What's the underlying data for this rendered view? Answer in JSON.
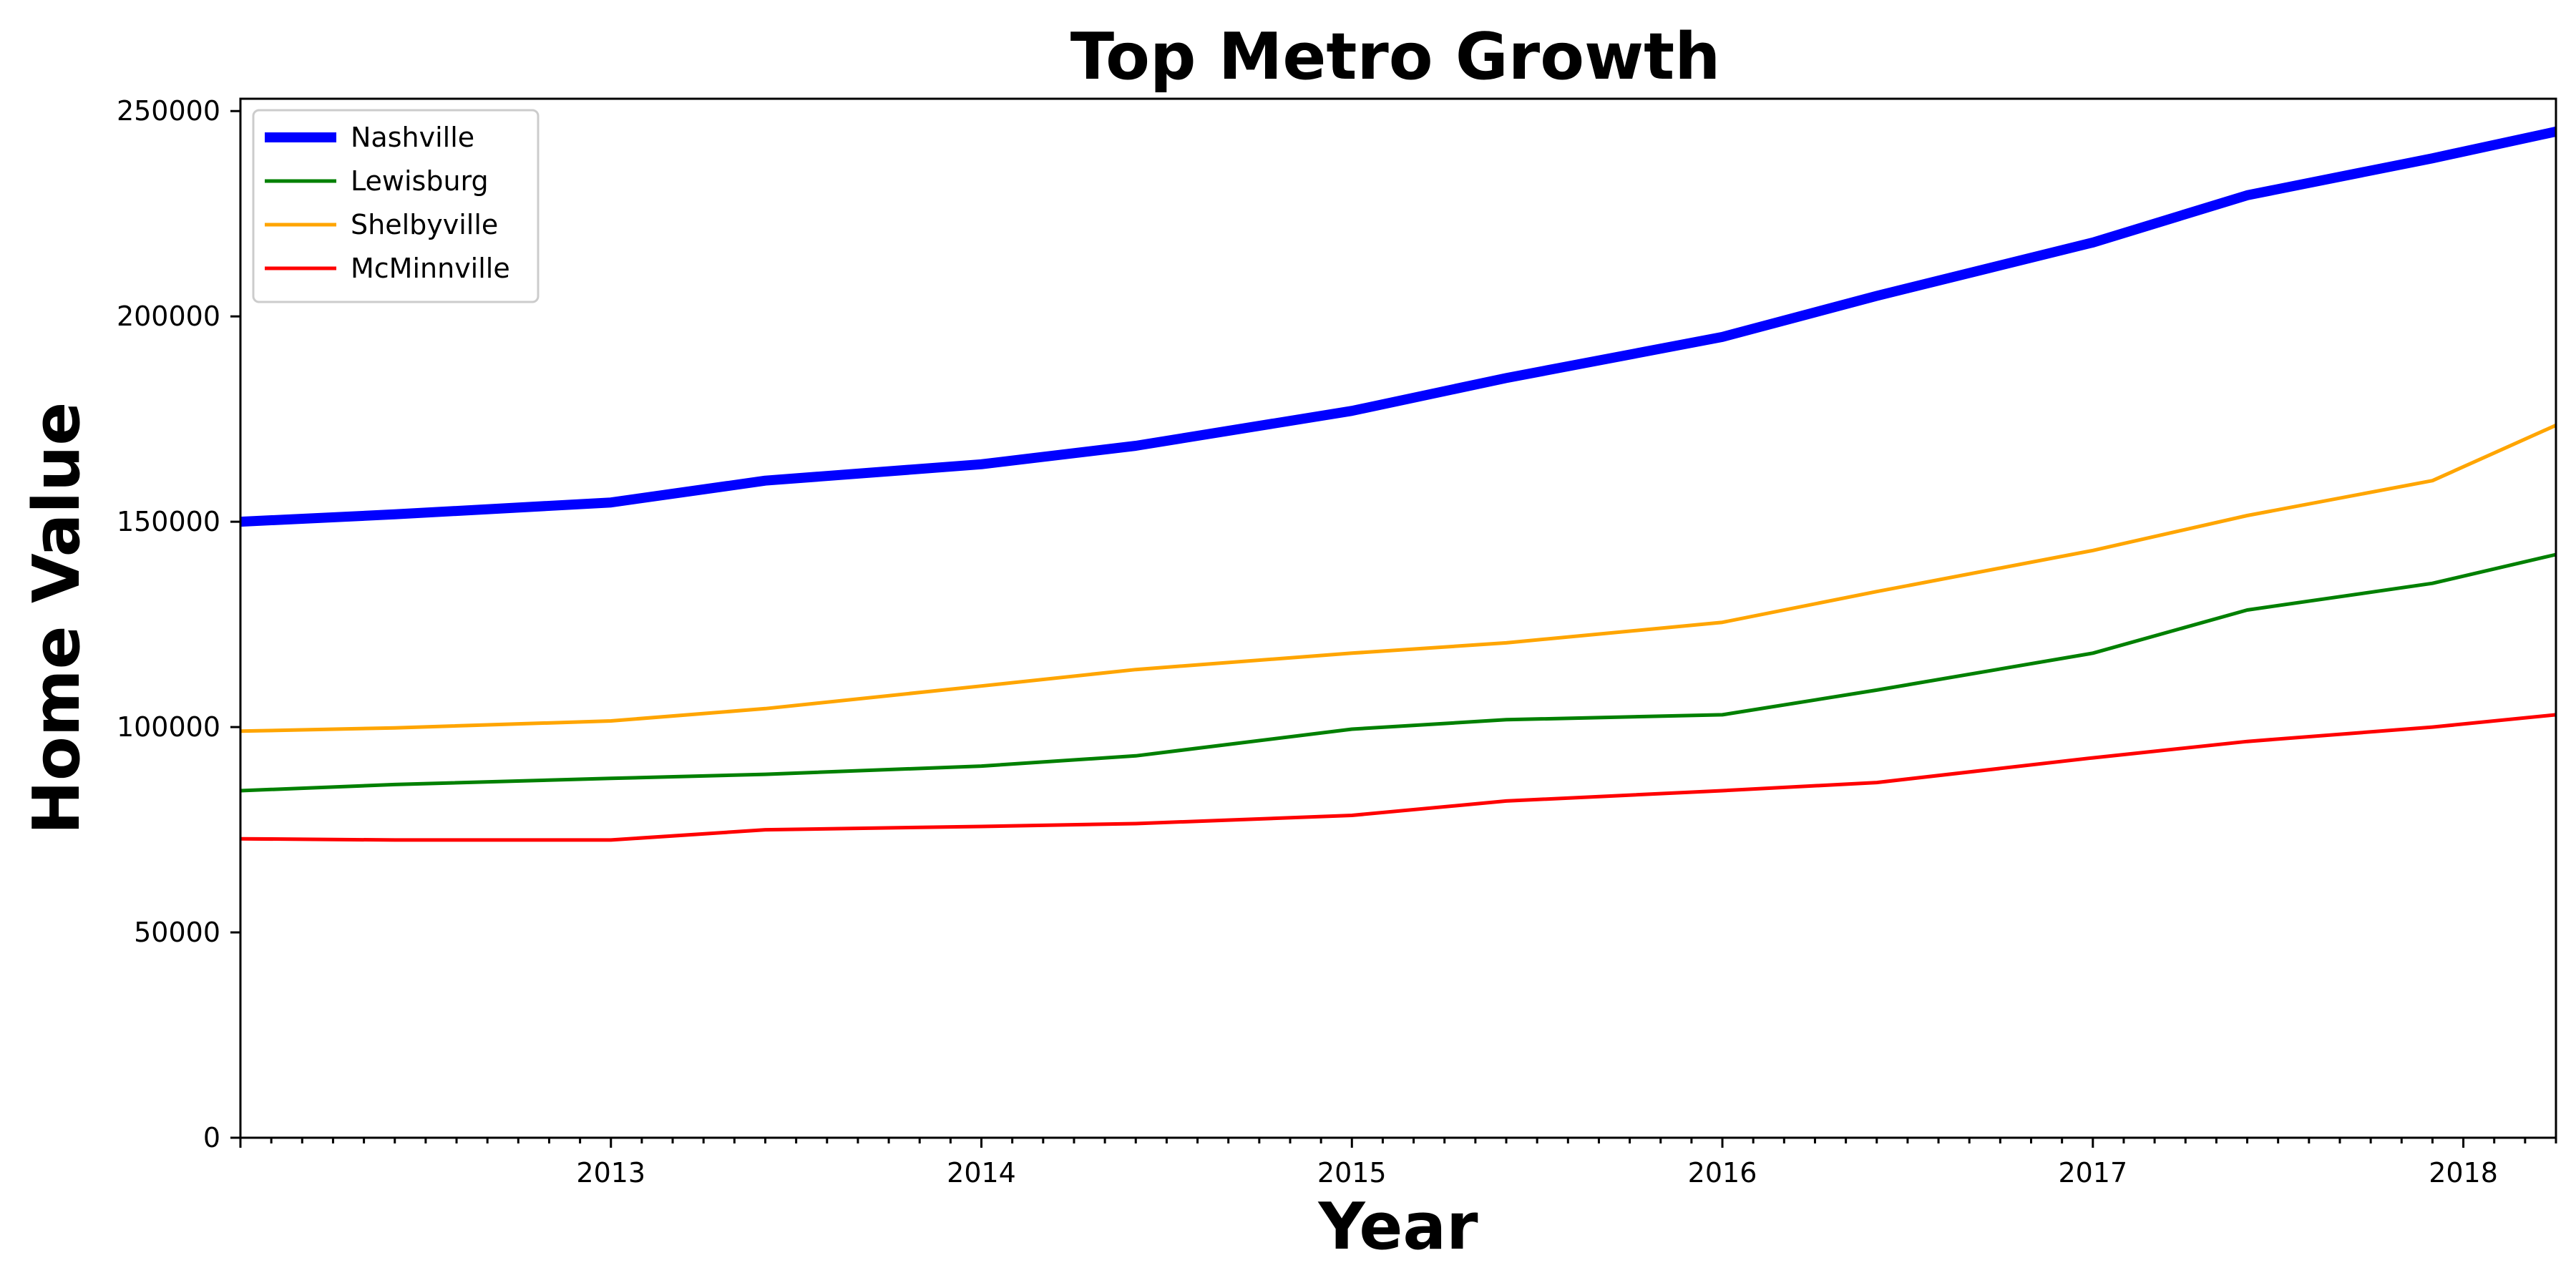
{
  "chart_data": {
    "type": "line",
    "title": "Top Metro Growth",
    "xlabel": "Year",
    "ylabel": "Home Value",
    "xlim": [
      "2012-01",
      "2018-04"
    ],
    "ylim": [
      0,
      253000
    ],
    "x_ticks": [
      "2013",
      "2014",
      "2015",
      "2016",
      "2017",
      "2018"
    ],
    "y_ticks": [
      "0",
      "50000",
      "100000",
      "150000",
      "200000",
      "250000"
    ],
    "grid": false,
    "legend": {
      "position": "top-left",
      "entries": [
        "Nashville",
        "Lewisburg",
        "Shelbyville",
        "McMinnville"
      ]
    },
    "x": [
      "2012-01",
      "2012-06",
      "2013-01",
      "2013-06",
      "2014-01",
      "2014-06",
      "2015-01",
      "2015-06",
      "2016-01",
      "2016-06",
      "2017-01",
      "2017-06",
      "2017-12",
      "2018-04"
    ],
    "series": [
      {
        "name": "Nashville",
        "color": "#0000ff",
        "width": "thick",
        "values": [
          150000,
          151800,
          154700,
          160000,
          164000,
          168500,
          177000,
          185000,
          195000,
          205000,
          218000,
          229500,
          238500,
          245000
        ]
      },
      {
        "name": "Lewisburg",
        "color": "#008000",
        "width": "normal",
        "values": [
          84500,
          86000,
          87500,
          88500,
          90500,
          93000,
          99500,
          101800,
          103000,
          109000,
          118000,
          128500,
          135000,
          142000
        ]
      },
      {
        "name": "Shelbyville",
        "color": "#ffa500",
        "width": "normal",
        "values": [
          99000,
          99800,
          101500,
          104500,
          110000,
          114000,
          118000,
          120500,
          125500,
          133000,
          143000,
          151500,
          160000,
          173500
        ]
      },
      {
        "name": "McMinnville",
        "color": "#ff0000",
        "width": "normal",
        "values": [
          72800,
          72500,
          72500,
          75000,
          75800,
          76500,
          78500,
          82000,
          84500,
          86500,
          92500,
          96500,
          100000,
          103000
        ]
      }
    ]
  }
}
